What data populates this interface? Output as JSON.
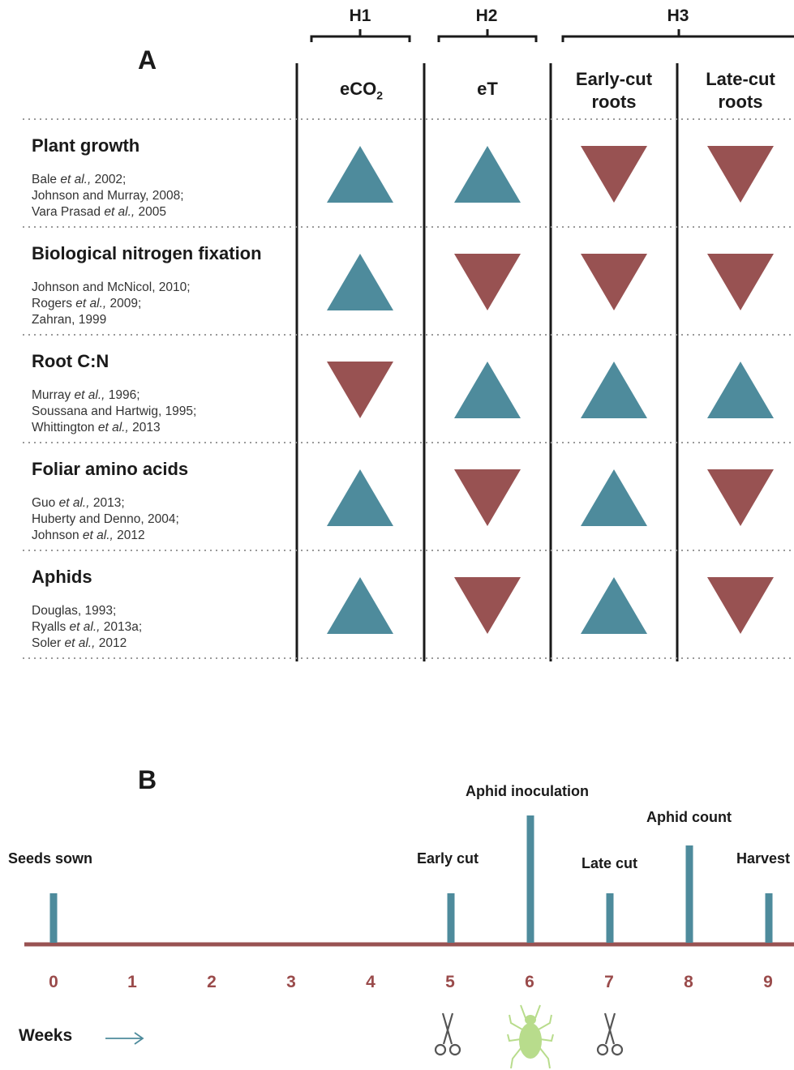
{
  "panel_a": {
    "letter": "A",
    "hypotheses": [
      {
        "label": "H1"
      },
      {
        "label": "H2"
      },
      {
        "label": "H3"
      }
    ],
    "columns": [
      {
        "line1": "eCO",
        "sub": "2",
        "line2": ""
      },
      {
        "line1": "eT",
        "sub": "",
        "line2": ""
      },
      {
        "line1": "Early-cut",
        "sub": "",
        "line2": "roots"
      },
      {
        "line1": "Late-cut",
        "sub": "",
        "line2": "roots"
      }
    ],
    "rows": [
      {
        "title": "Plant growth",
        "refs": [
          [
            "Bale ",
            "et al.,",
            " 2002;"
          ],
          [
            "Johnson and Murray, 2008;",
            "",
            ""
          ],
          [
            "Vara Prasad ",
            "et al.,",
            " 2005"
          ]
        ],
        "effects": [
          "up",
          "up",
          "down",
          "down"
        ]
      },
      {
        "title": "Biological nitrogen fixation",
        "refs": [
          [
            "Johnson and McNicol, 2010;",
            "",
            ""
          ],
          [
            "Rogers ",
            "et al.,",
            " 2009;"
          ],
          [
            "Zahran, 1999",
            "",
            ""
          ]
        ],
        "effects": [
          "up",
          "down",
          "down",
          "down"
        ]
      },
      {
        "title": "Root C:N",
        "refs": [
          [
            "Murray ",
            "et al.,",
            " 1996;"
          ],
          [
            "Soussana and Hartwig, 1995;",
            "",
            ""
          ],
          [
            "Whittington ",
            "et al.,",
            " 2013"
          ]
        ],
        "effects": [
          "down",
          "up",
          "up",
          "up"
        ]
      },
      {
        "title": "Foliar amino acids",
        "refs": [
          [
            "Guo ",
            "et al.,",
            " 2013;"
          ],
          [
            "Huberty and Denno, 2004;",
            "",
            ""
          ],
          [
            "Johnson ",
            "et al.,",
            " 2012"
          ]
        ],
        "effects": [
          "up",
          "down",
          "up",
          "down"
        ]
      },
      {
        "title": "Aphids",
        "refs": [
          [
            "Douglas, 1993;",
            "",
            ""
          ],
          [
            "Ryalls ",
            "et al.,",
            " 2013a;"
          ],
          [
            "Soler ",
            "et al.,",
            " 2012"
          ]
        ],
        "effects": [
          "up",
          "down",
          "up",
          "down"
        ]
      }
    ],
    "colors": {
      "up": "#4e8b9c",
      "down": "#985252",
      "dots": "#9a9a9a"
    }
  },
  "panel_b": {
    "letter": "B",
    "weeks_label": "Weeks",
    "weeks": [
      "0",
      "1",
      "2",
      "3",
      "4",
      "5",
      "6",
      "7",
      "8",
      "9"
    ],
    "events": [
      {
        "label": "Seeds sown",
        "week": 0
      },
      {
        "label": "Early cut",
        "week": 5
      },
      {
        "label": "Aphid inoculation",
        "week": 6
      },
      {
        "label": "Late cut",
        "week": 7
      },
      {
        "label": "Aphid count",
        "week": 8
      },
      {
        "label": "Harvest",
        "week": 9
      }
    ],
    "icons": [
      "scissors-icon",
      "aphid-icon",
      "scissors-icon",
      "arrow-right-icon"
    ],
    "colors": {
      "bar": "#4e8b9c",
      "axis": "#985252",
      "aphid": "#b8dc8c",
      "scissors": "#555555"
    }
  }
}
